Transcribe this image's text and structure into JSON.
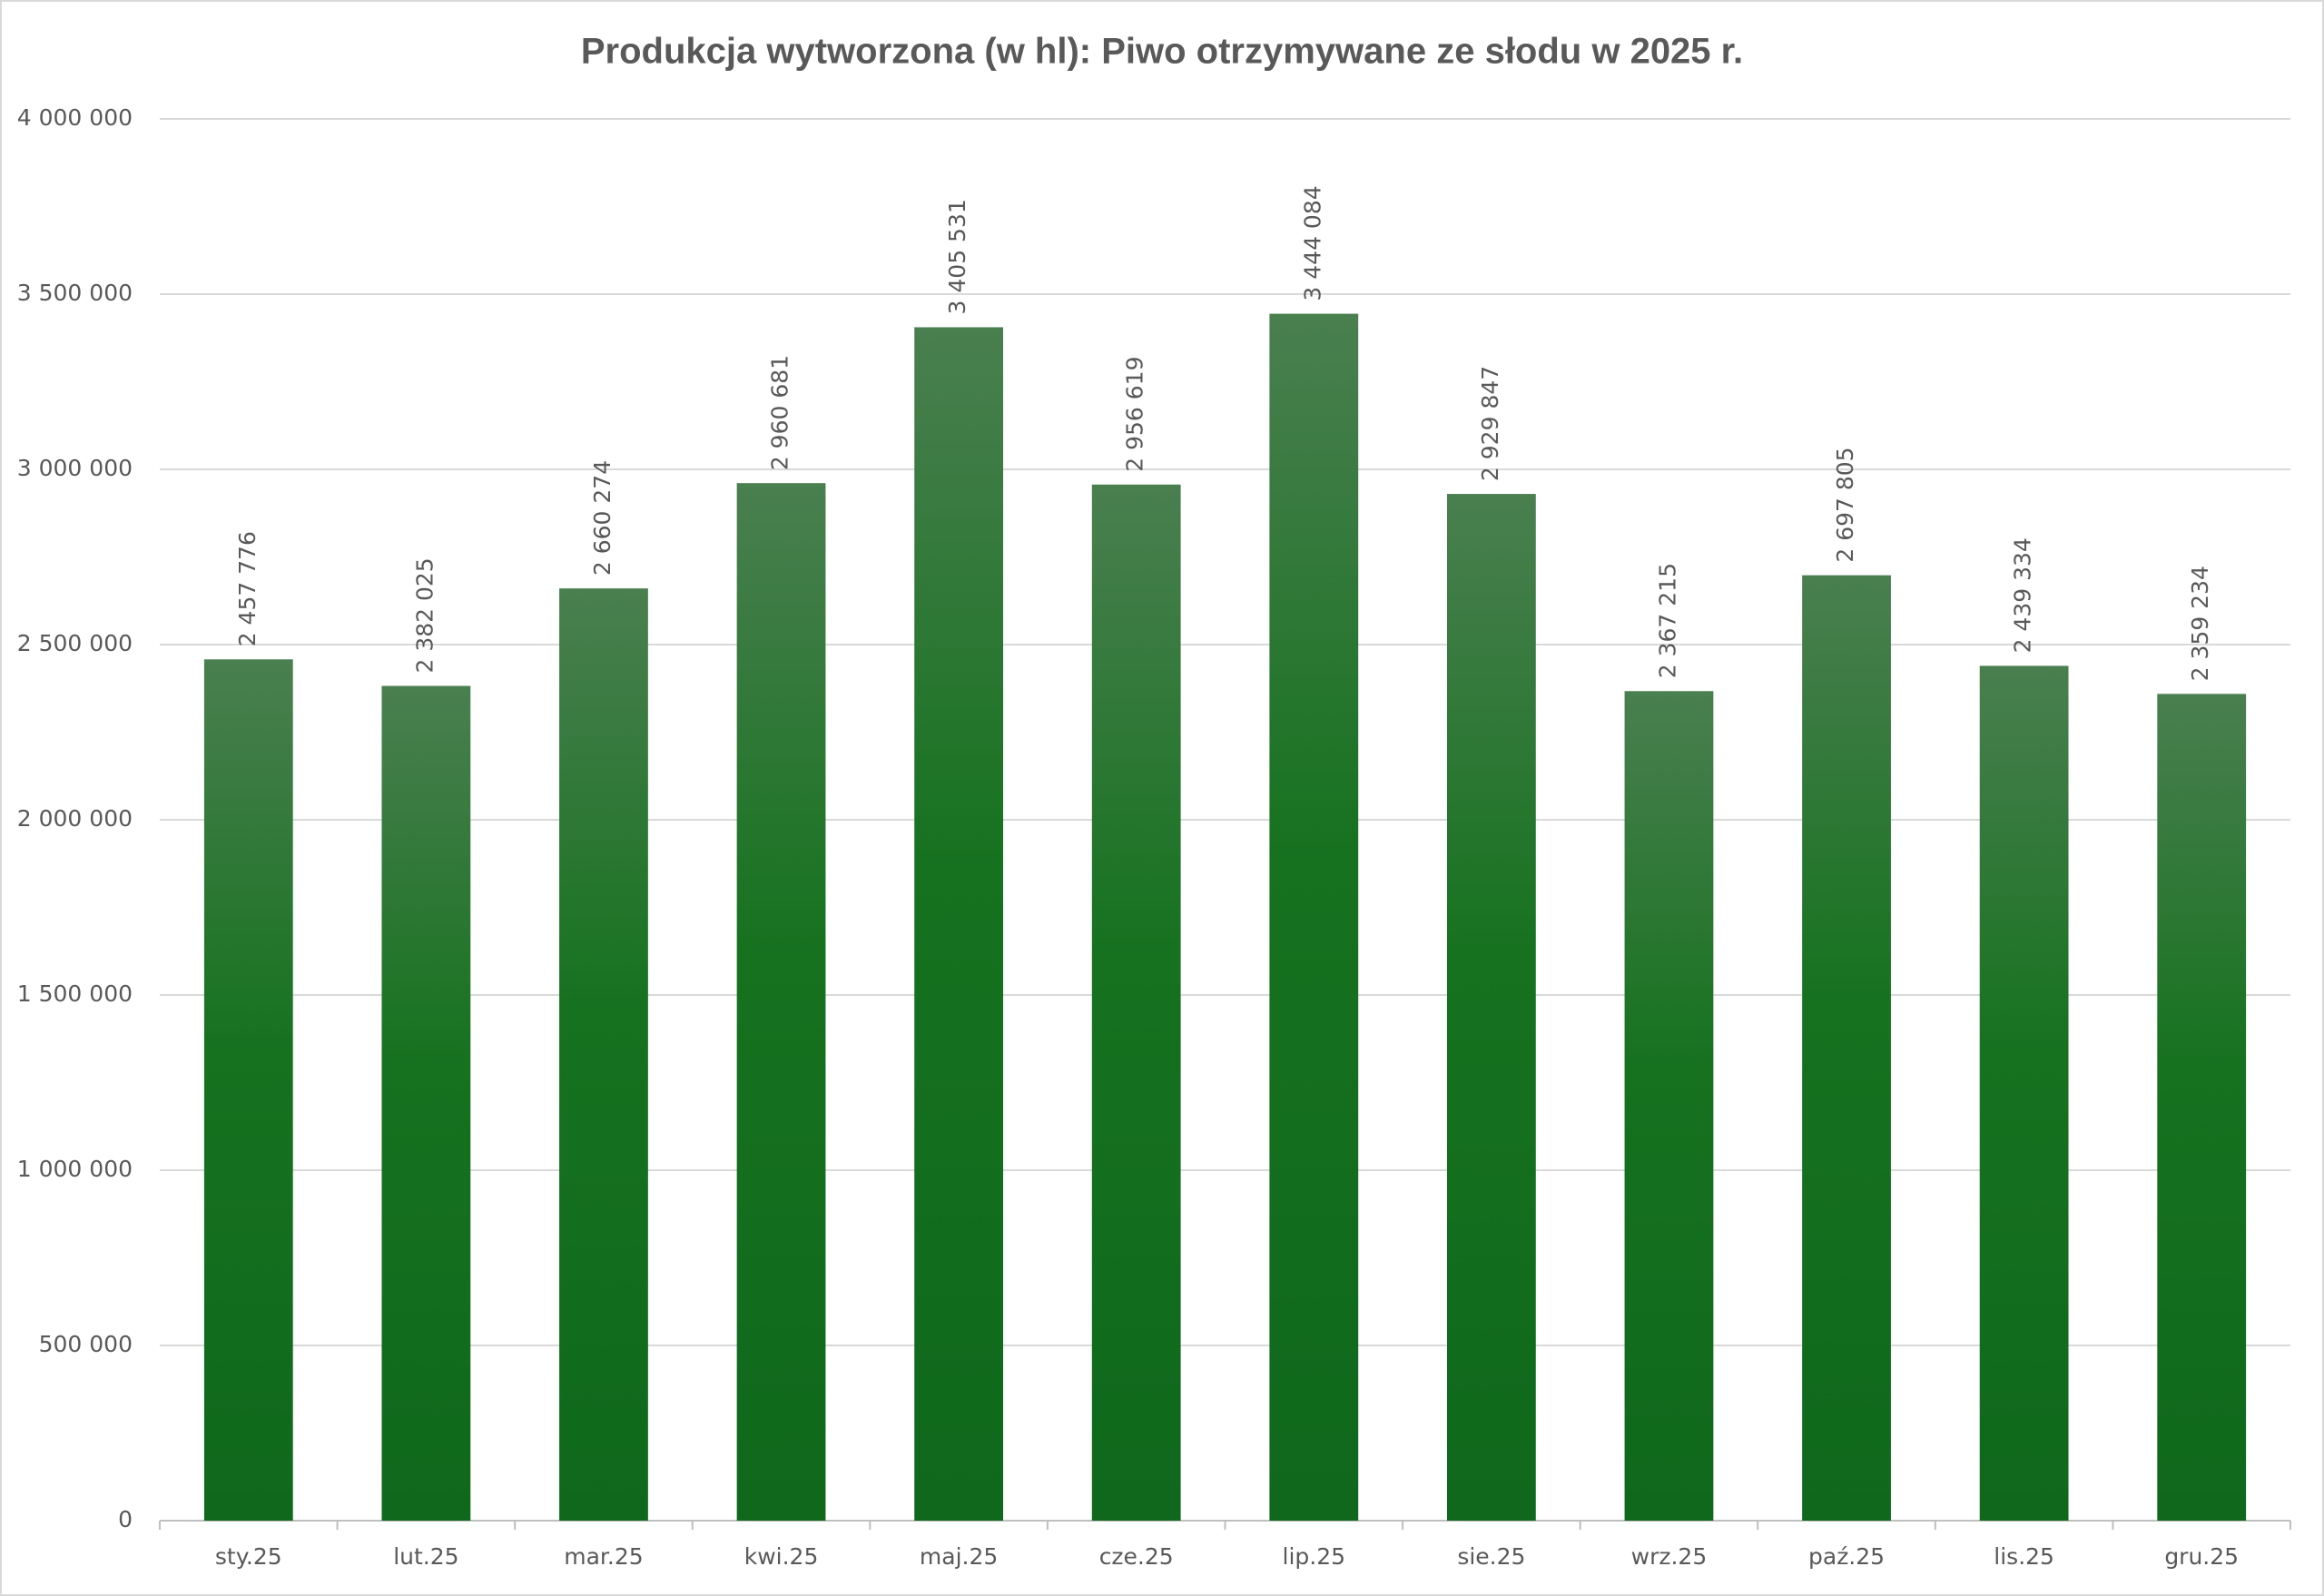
{
  "chart_data": {
    "type": "bar",
    "title": "Produkcja wytworzona (w hl): Piwo otrzymywane ze słodu w 2025 r.",
    "categories": [
      "sty.25",
      "lut.25",
      "mar.25",
      "kwi.25",
      "maj.25",
      "cze.25",
      "lip.25",
      "sie.25",
      "wrz.25",
      "paź.25",
      "lis.25",
      "gru.25"
    ],
    "values": [
      2457776,
      2382025,
      2660274,
      2960681,
      3405531,
      2956619,
      3444084,
      2929847,
      2367215,
      2697805,
      2439334,
      2359234
    ],
    "value_labels": [
      "2 457 776",
      "2 382 025",
      "2 660 274",
      "2 960 681",
      "3 405 531",
      "2 956 619",
      "3 444 084",
      "2 929 847",
      "2 367 215",
      "2 697 805",
      "2 439 334",
      "2 359 234"
    ],
    "color": "#167320",
    "ylim": [
      0,
      4000000
    ],
    "yticks": [
      0,
      {
        "value": 500000,
        "label": "500 000"
      },
      {
        "value": 1000000,
        "label": "1 000 000"
      },
      {
        "value": 1500000,
        "label": "1 500 000"
      },
      {
        "value": 2000000,
        "label": "2 000 000"
      },
      {
        "value": 2500000,
        "label": "2 500 000"
      },
      {
        "value": 3000000,
        "label": "3 000 000"
      },
      {
        "value": 3500000,
        "label": "3 500 000"
      },
      {
        "value": 4000000,
        "label": "4 000 000"
      }
    ],
    "grid": true
  }
}
